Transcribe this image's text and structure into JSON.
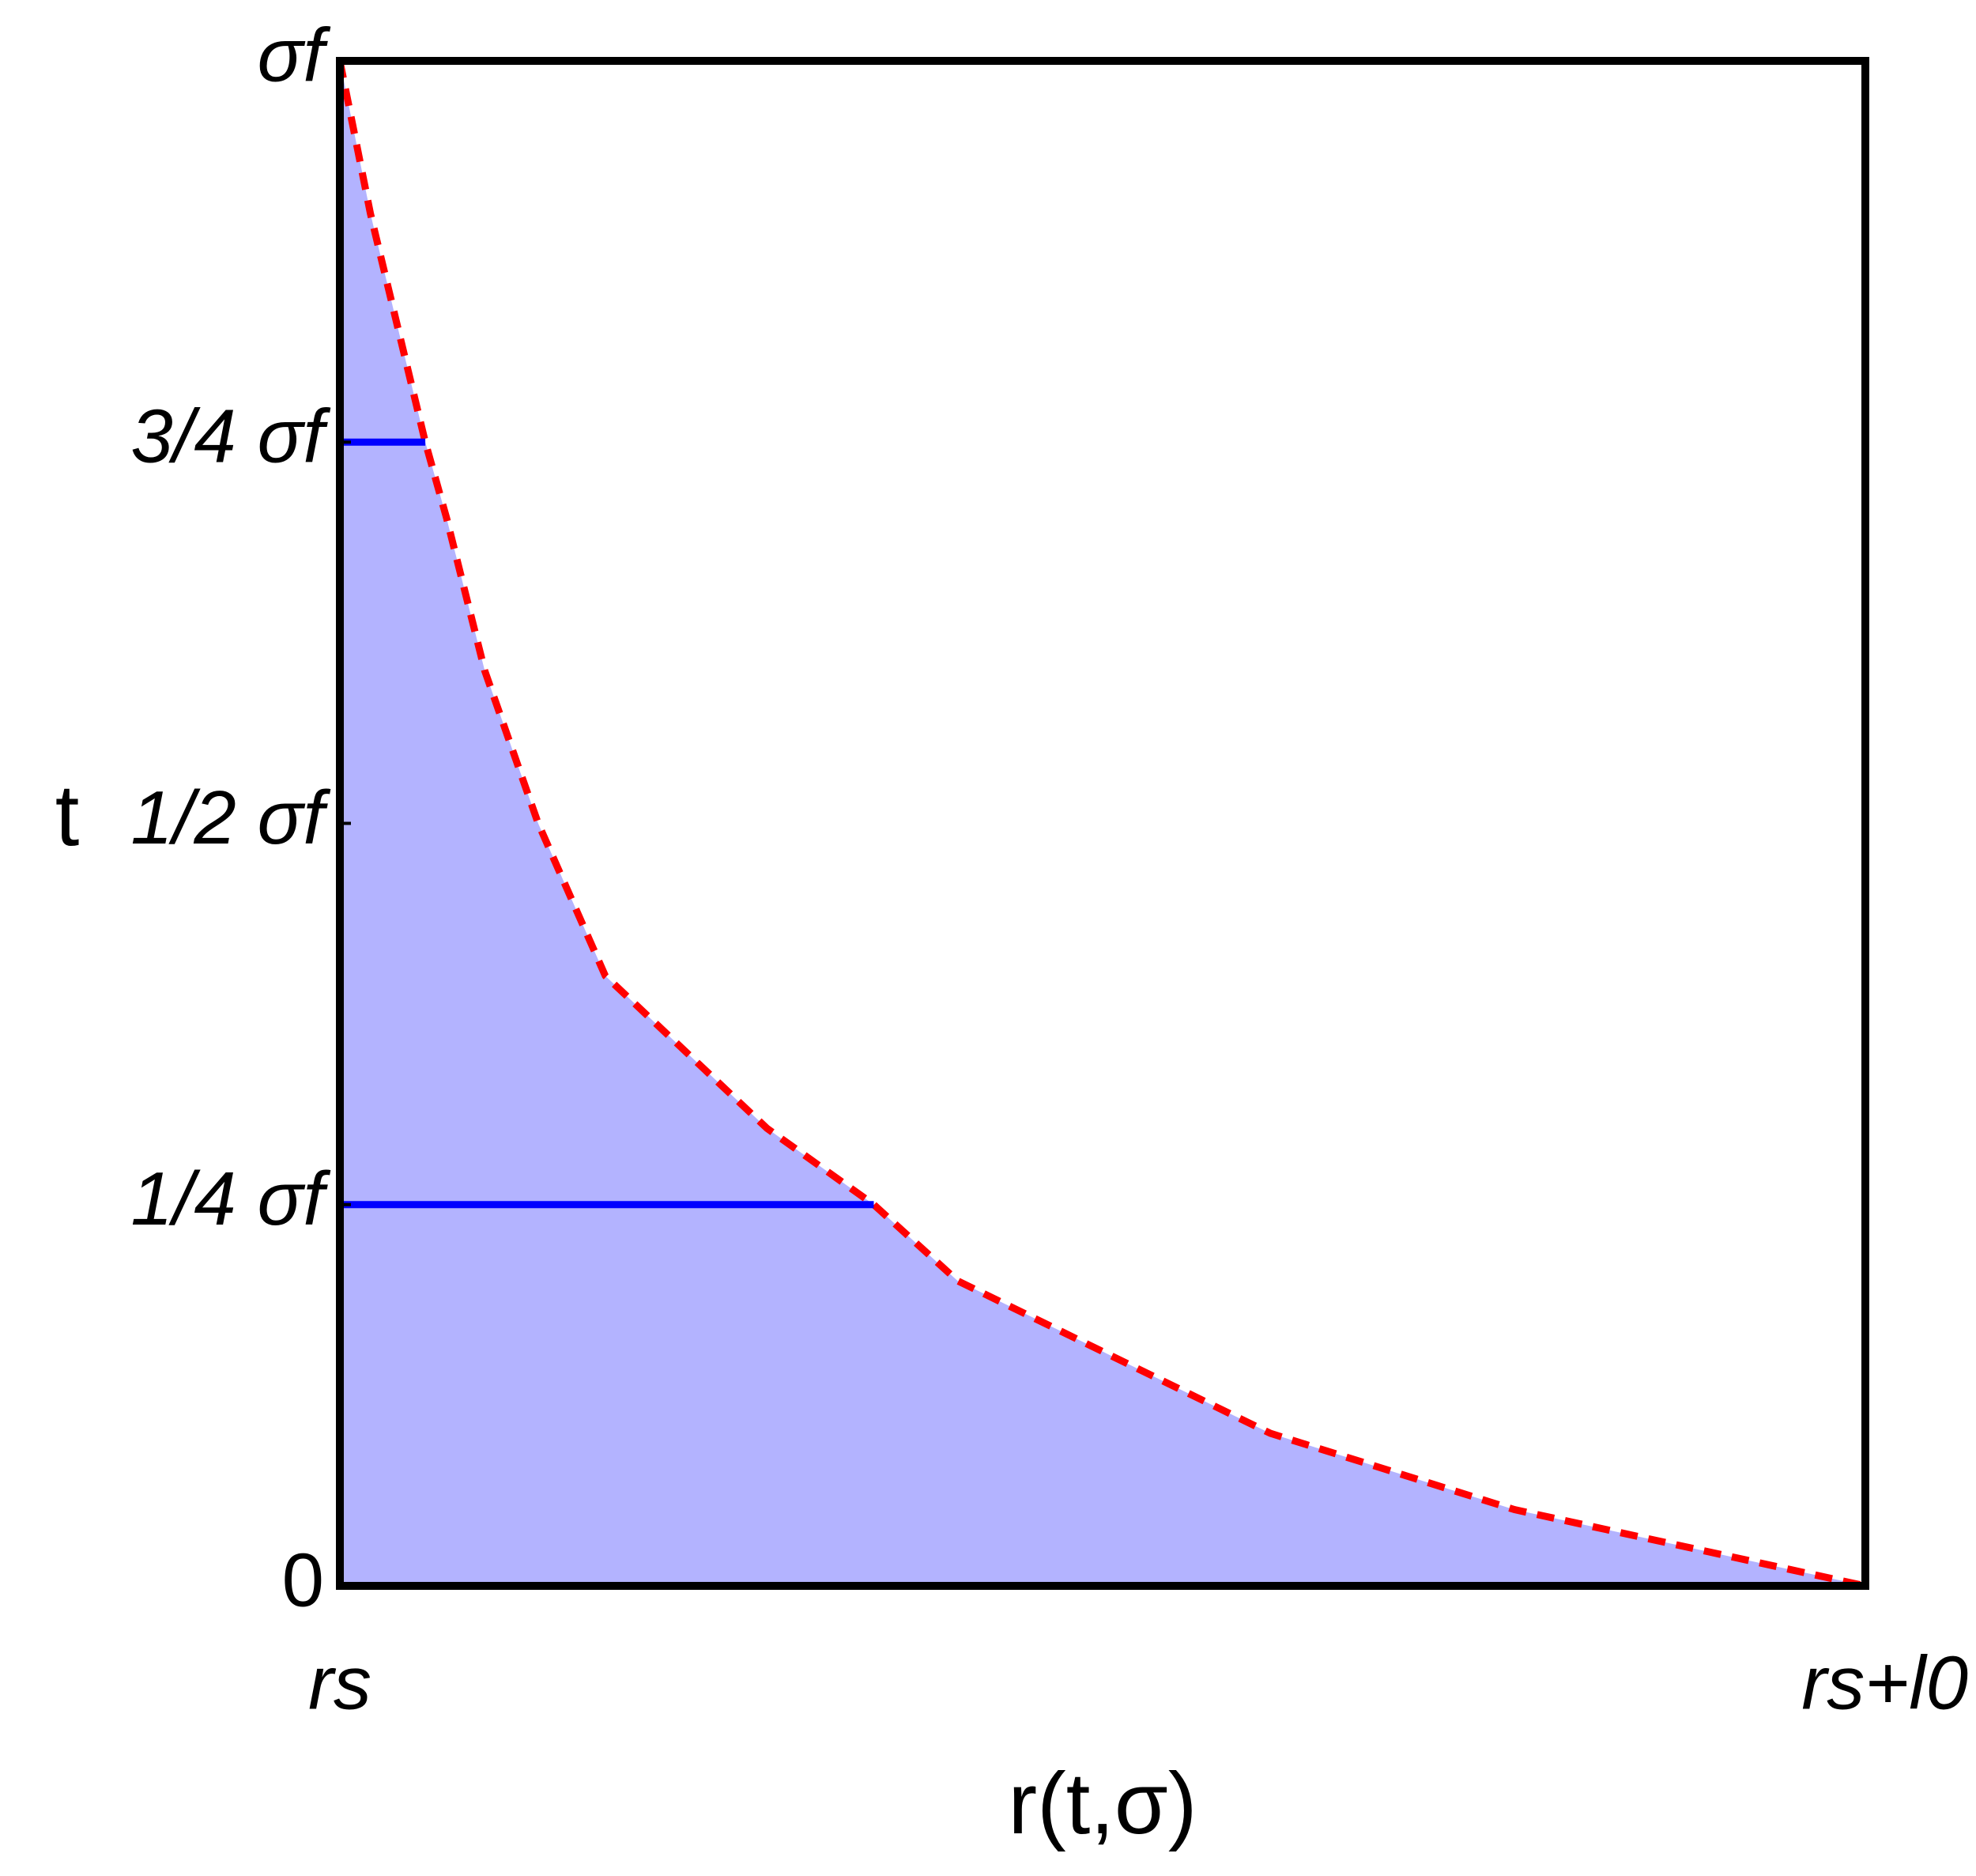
{
  "chart_data": {
    "type": "area",
    "x_label": "r(t,σ)",
    "y_label": "t",
    "xlim": [
      0,
      1
    ],
    "ylim": [
      0,
      1
    ],
    "xticks": [
      {
        "value": 0,
        "label": "rs"
      },
      {
        "value": 1,
        "label": "rs+l0"
      }
    ],
    "yticks": [
      0,
      {
        "value": 0.25,
        "label": "1/4 σf"
      },
      {
        "value": 0.5,
        "label": "1/2 σf"
      },
      {
        "value": 0.75,
        "label": "3/4 σf"
      },
      {
        "value": 1,
        "label": "σf"
      }
    ],
    "series": [
      {
        "color": "#ff0000",
        "fill": "#b3b3ff",
        "x": [
          0,
          0.02,
          0.044,
          0.056,
          0.07,
          0.095,
          0.13,
          0.174,
          0.28,
          0.35,
          0.405,
          0.61,
          0.77,
          1
        ],
        "values": [
          1,
          0.9,
          0.8,
          0.75,
          0.7,
          0.6,
          0.5,
          0.4,
          0.3,
          0.25,
          0.2,
          0.1,
          0.05,
          0
        ]
      }
    ],
    "segments": {
      "color": "#0000ff",
      "y": [
        0.25,
        0.75
      ],
      "x_end": [
        0.35,
        0.056
      ]
    }
  }
}
